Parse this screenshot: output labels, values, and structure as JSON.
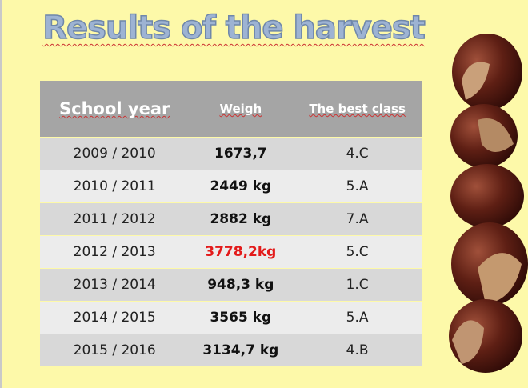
{
  "title": "Results of the harvest",
  "table": {
    "header": [
      "School year",
      "Weigh",
      "The best class"
    ],
    "rows": [
      [
        "2009 / 2010",
        "1673,7",
        "4.C"
      ],
      [
        "2010 / 2011",
        "2449 kg",
        "5.A"
      ],
      [
        "2011 / 2012",
        "2882 kg",
        "7.A"
      ],
      [
        "2012 / 2013",
        "3778,2kg",
        "5.C"
      ],
      [
        "2013 / 2014",
        "948,3 kg",
        "1.C"
      ],
      [
        "2014 / 2015",
        "3565 kg",
        "5.A"
      ],
      [
        "2015 / 2016",
        "3134,7 kg",
        "4.B"
      ]
    ]
  }
}
